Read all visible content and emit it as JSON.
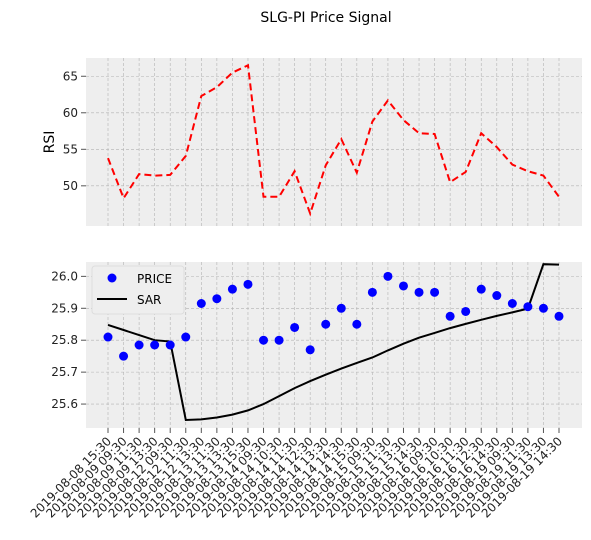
{
  "title": "SLG-PI Price Signal",
  "chart_data": [
    {
      "type": "line",
      "ylabel": "RSI",
      "yticks": [
        50,
        55,
        60,
        65
      ],
      "ylim": [
        44.5,
        67.5
      ],
      "grid": true,
      "series": [
        {
          "values": [
            53.8,
            48.3,
            51.6,
            51.4,
            51.5,
            54.1,
            62.3,
            63.5,
            65.5,
            66.5,
            48.5,
            48.5,
            52.0,
            46.2,
            52.8,
            56.4,
            51.8,
            58.8,
            61.7,
            59.0,
            57.2,
            57.1,
            50.5,
            51.9,
            57.2,
            55.3,
            52.9,
            52.0,
            51.4,
            48.5
          ],
          "color": "#ff0000",
          "style": "dashed"
        }
      ]
    },
    {
      "type": "line",
      "ylim": [
        25.525,
        26.045
      ],
      "yticks": [
        25.6,
        25.7,
        25.8,
        25.9,
        26.0
      ],
      "ytick_labels": [
        "25.6",
        "25.7",
        "25.8",
        "25.9",
        "26.0"
      ],
      "grid": true,
      "legend": "top-left",
      "categories": [
        "2019-08-08 15:30",
        "2019-08-09 09:30",
        "2019-08-09 11:30",
        "2019-08-09 13:30",
        "2019-08-12 09:30",
        "2019-08-12 11:30",
        "2019-08-12 13:30",
        "2019-08-13 11:30",
        "2019-08-13 13:30",
        "2019-08-13 15:30",
        "2019-08-14 09:30",
        "2019-08-14 10:30",
        "2019-08-14 11:30",
        "2019-08-14 12:30",
        "2019-08-14 13:30",
        "2019-08-14 14:30",
        "2019-08-14 15:30",
        "2019-08-15 09:30",
        "2019-08-15 11:30",
        "2019-08-15 13:30",
        "2019-08-15 14:30",
        "2019-08-16 09:30",
        "2019-08-16 10:30",
        "2019-08-16 11:30",
        "2019-08-16 12:30",
        "2019-08-16 14:30",
        "2019-08-19 09:30",
        "2019-08-19 11:30",
        "2019-08-19 13:30",
        "2019-08-19 14:30"
      ],
      "series": [
        {
          "name": "PRICE",
          "kind": "scatter",
          "color": "#0000ff",
          "values": [
            25.81,
            25.75,
            25.785,
            25.785,
            25.785,
            25.81,
            25.915,
            25.93,
            25.96,
            25.975,
            25.8,
            25.8,
            25.84,
            25.77,
            25.85,
            25.9,
            25.85,
            25.95,
            26.0,
            25.97,
            25.95,
            25.95,
            25.875,
            25.89,
            25.96,
            25.94,
            25.915,
            25.905,
            25.9,
            25.875
          ]
        },
        {
          "name": "SAR",
          "kind": "line",
          "color": "#000000",
          "values": [
            25.848,
            25.832,
            25.816,
            25.8,
            25.796,
            25.55,
            25.552,
            25.558,
            25.567,
            25.58,
            25.6,
            25.625,
            25.65,
            25.672,
            25.692,
            25.711,
            25.729,
            25.746,
            25.768,
            25.789,
            25.808,
            25.823,
            25.838,
            25.851,
            25.864,
            25.876,
            25.887,
            25.899,
            26.038,
            26.037
          ]
        }
      ]
    }
  ]
}
